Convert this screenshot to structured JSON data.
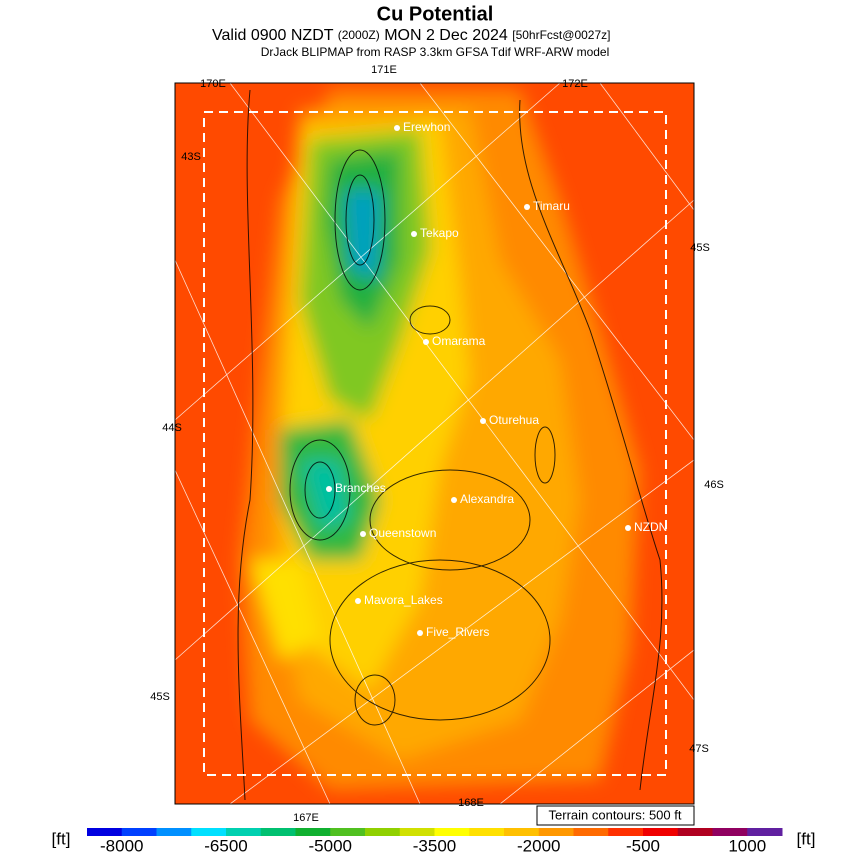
{
  "header": {
    "title": "Cu Potential",
    "line1": "Valid 0900 NZDT",
    "line1_zone": "(2000Z)",
    "line1_date": "MON 2 Dec 2024",
    "line1_fcst": "[50hrFcst@0027z]",
    "line2": "DrJack BLIPMAP from RASP 3.3km GFSA Tdif WRF-ARW model"
  },
  "map": {
    "grid_labels": [
      "170E",
      "171E",
      "172E",
      "43S",
      "45S",
      "44S",
      "46S",
      "45S",
      "47S",
      "167E",
      "168E"
    ],
    "places": [
      "Erewhon",
      "Timaru",
      "Tekapo",
      "Omarama",
      "Oturehua",
      "Branches",
      "Alexandra",
      "NZDN",
      "Queenstown",
      "Mavora_Lakes",
      "Five_Rivers"
    ],
    "contour_note": "Terrain contours: 500 ft"
  },
  "colorbar": {
    "unit": "[ft]",
    "lim": [
      -8500,
      1500
    ],
    "ticks": [
      -8000,
      -6500,
      -5000,
      -3500,
      -2000,
      -500,
      1000
    ],
    "colors": [
      "#0000e0",
      "#0040ff",
      "#0090ff",
      "#00e0ff",
      "#00d0b0",
      "#00c070",
      "#10b030",
      "#50c020",
      "#90d000",
      "#d0e000",
      "#ffff00",
      "#ffe000",
      "#ffc000",
      "#ff9800",
      "#ff6a00",
      "#ff3000",
      "#f00000",
      "#b00020",
      "#900060",
      "#6020a0"
    ]
  }
}
